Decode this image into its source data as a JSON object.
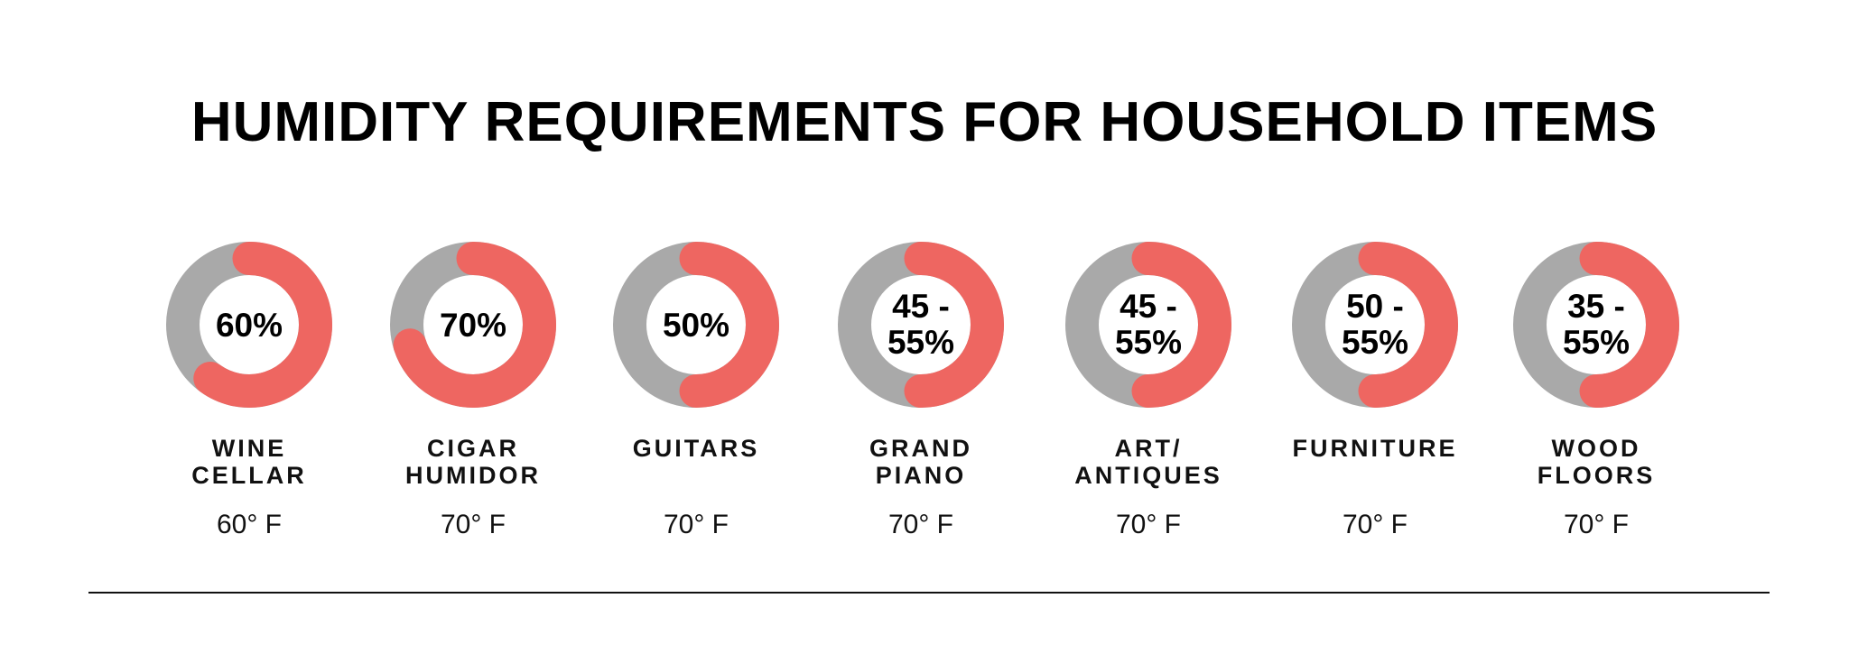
{
  "chart_data": {
    "type": "donut",
    "title": "HUMIDITY REQUIREMENTS FOR HOUSEHOLD ITEMS",
    "colors": {
      "filled": "#EE6661",
      "remaining": "#A9A9A9"
    },
    "items": [
      {
        "label_lines": [
          "WINE",
          "CELLAR"
        ],
        "humidity_lines": [
          "60%"
        ],
        "fill_percent": 60,
        "temperature": "60° F"
      },
      {
        "label_lines": [
          "CIGAR",
          "HUMIDOR"
        ],
        "humidity_lines": [
          "70%"
        ],
        "fill_percent": 70,
        "temperature": "70° F"
      },
      {
        "label_lines": [
          "GUITARS"
        ],
        "humidity_lines": [
          "50%"
        ],
        "fill_percent": 50,
        "temperature": "70° F"
      },
      {
        "label_lines": [
          "GRAND",
          "PIANO"
        ],
        "humidity_lines": [
          "45 -",
          "55%"
        ],
        "fill_percent": 50,
        "temperature": "70° F"
      },
      {
        "label_lines": [
          "ART/",
          "ANTIQUES"
        ],
        "humidity_lines": [
          "45 -",
          "55%"
        ],
        "fill_percent": 50,
        "temperature": "70° F"
      },
      {
        "label_lines": [
          "FURNITURE"
        ],
        "humidity_lines": [
          "50 -",
          "55%"
        ],
        "fill_percent": 50,
        "temperature": "70° F"
      },
      {
        "label_lines": [
          "WOOD",
          "FLOORS"
        ],
        "humidity_lines": [
          "35 -",
          "55%"
        ],
        "fill_percent": 50,
        "temperature": "70° F"
      }
    ]
  }
}
